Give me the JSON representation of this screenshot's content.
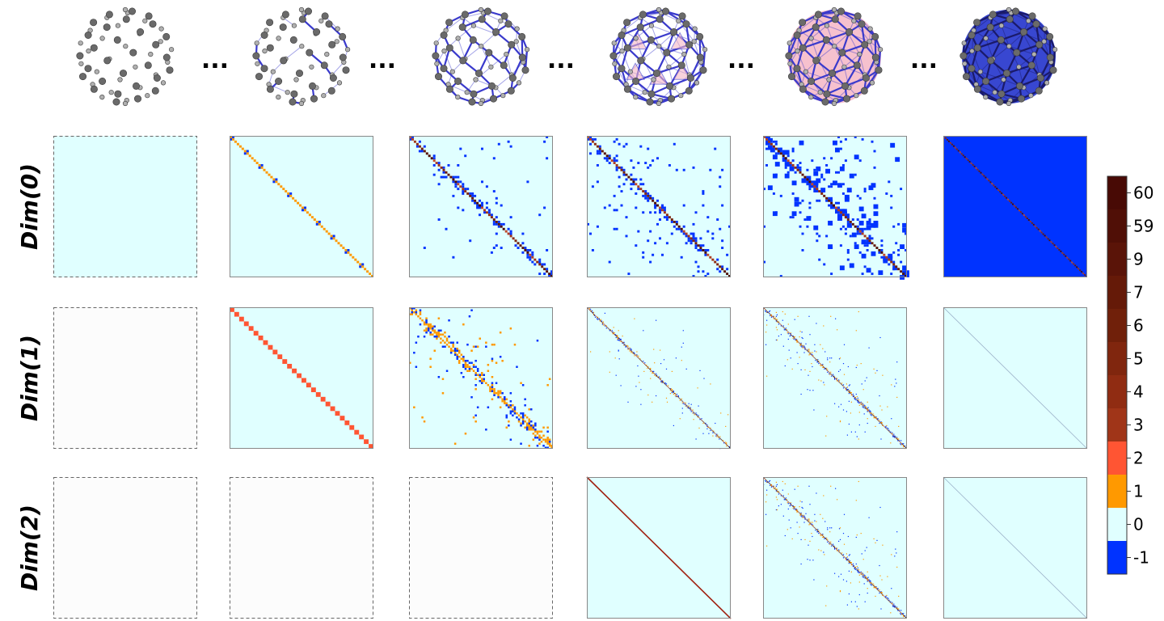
{
  "separator": "...",
  "row_labels": [
    "Dim(0)",
    "Dim(1)",
    "Dim(2)"
  ],
  "colorbar": {
    "tick_labels": [
      "60",
      "59",
      "9",
      "7",
      "6",
      "5",
      "4",
      "3",
      "2",
      "1",
      "0",
      "-1"
    ],
    "colors": {
      "minus1": "#0033ff",
      "zero": "#e0ffff",
      "one": "#ff9900",
      "two": "#ff5533",
      "dark_ramp": [
        "#c04a2a",
        "#b03c22",
        "#a03518",
        "#902c12",
        "#80260e",
        "#70200a",
        "#651a08",
        "#5a1408",
        "#500f06",
        "#480a05"
      ]
    }
  },
  "colors": {
    "bond": "#3a3acc",
    "atom": "#808080",
    "panel_border": "#888888",
    "dashed_border": "#666666",
    "empty_fill": "#fcfcfc",
    "pink": "#f4b6c6",
    "solid_blue": "#2233cc"
  },
  "molecules": [
    {
      "name": "atoms-only"
    },
    {
      "name": "partial-bonds"
    },
    {
      "name": "full-cage"
    },
    {
      "name": "cage-with-faces"
    },
    {
      "name": "pink-filled-cage"
    },
    {
      "name": "blue-filled-cage"
    }
  ],
  "matrix_grid": [
    [
      "empty",
      "diag-stripes",
      "diag-scatter",
      "diag-scatter-dense",
      "blocky-blue",
      "solid-blue"
    ],
    [
      "empty-dashed",
      "red-diag",
      "orange-blue-scatter",
      "fine-scatter",
      "fine-scatter-dense",
      "faint-diag"
    ],
    [
      "empty-dashed",
      "empty-dashed",
      "empty-dashed",
      "thin-diag",
      "fine-scatter-dense",
      "faint-diag"
    ]
  ]
}
